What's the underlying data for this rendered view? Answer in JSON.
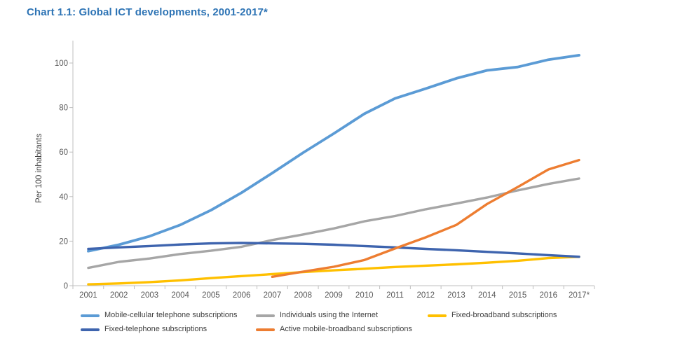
{
  "title": "Chart 1.1: Global ICT developments, 2001-2017*",
  "colors": {
    "title_text": "#2E74B5",
    "axis_line": "#BFBFBF",
    "tick_text": "#595959",
    "legend_text": "#404040"
  },
  "chart_data": {
    "type": "line",
    "title": "Chart 1.1: Global ICT developments, 2001-2017*",
    "xlabel": "",
    "ylabel": "Per 100 inhabitants",
    "ylim": [
      0,
      110
    ],
    "y_ticks": [
      0,
      20,
      40,
      60,
      80,
      100
    ],
    "grid": false,
    "legend_position": "bottom",
    "categories": [
      "2001",
      "2002",
      "2003",
      "2004",
      "2005",
      "2006",
      "2007",
      "2008",
      "2009",
      "2010",
      "2011",
      "2012",
      "2013",
      "2014",
      "2015",
      "2016",
      "2017*"
    ],
    "series": [
      {
        "name": "Mobile-cellular telephone subscriptions",
        "color": "#5B9BD5",
        "values": [
          15.5,
          18.4,
          22.2,
          27.3,
          33.9,
          41.8,
          50.6,
          59.7,
          68.3,
          77.2,
          84.1,
          88.5,
          93.1,
          96.7,
          98.2,
          101.5,
          103.5
        ]
      },
      {
        "name": "Individuals using the Internet",
        "color": "#A6A6A6",
        "values": [
          8.0,
          10.7,
          12.2,
          14.2,
          15.7,
          17.5,
          20.5,
          23.0,
          25.7,
          28.9,
          31.3,
          34.3,
          36.9,
          39.6,
          42.8,
          45.7,
          48.1
        ]
      },
      {
        "name": "Fixed-broadband subscriptions",
        "color": "#FFC000",
        "values": [
          0.6,
          1.0,
          1.6,
          2.4,
          3.4,
          4.3,
          5.2,
          6.1,
          6.9,
          7.6,
          8.4,
          9.0,
          9.6,
          10.3,
          11.2,
          12.4,
          13.0
        ]
      },
      {
        "name": "Fixed-telephone subscriptions",
        "color": "#3E64AE",
        "values": [
          16.5,
          17.2,
          17.8,
          18.5,
          19.0,
          19.2,
          19.0,
          18.8,
          18.4,
          17.8,
          17.2,
          16.5,
          15.9,
          15.2,
          14.5,
          13.7,
          13.0
        ]
      },
      {
        "name": "Active mobile-broadband subscriptions",
        "color": "#ED7D31",
        "values": [
          null,
          null,
          null,
          null,
          null,
          null,
          4.0,
          6.3,
          8.5,
          11.5,
          16.7,
          21.7,
          27.3,
          36.7,
          44.3,
          52.2,
          56.4
        ]
      }
    ]
  }
}
